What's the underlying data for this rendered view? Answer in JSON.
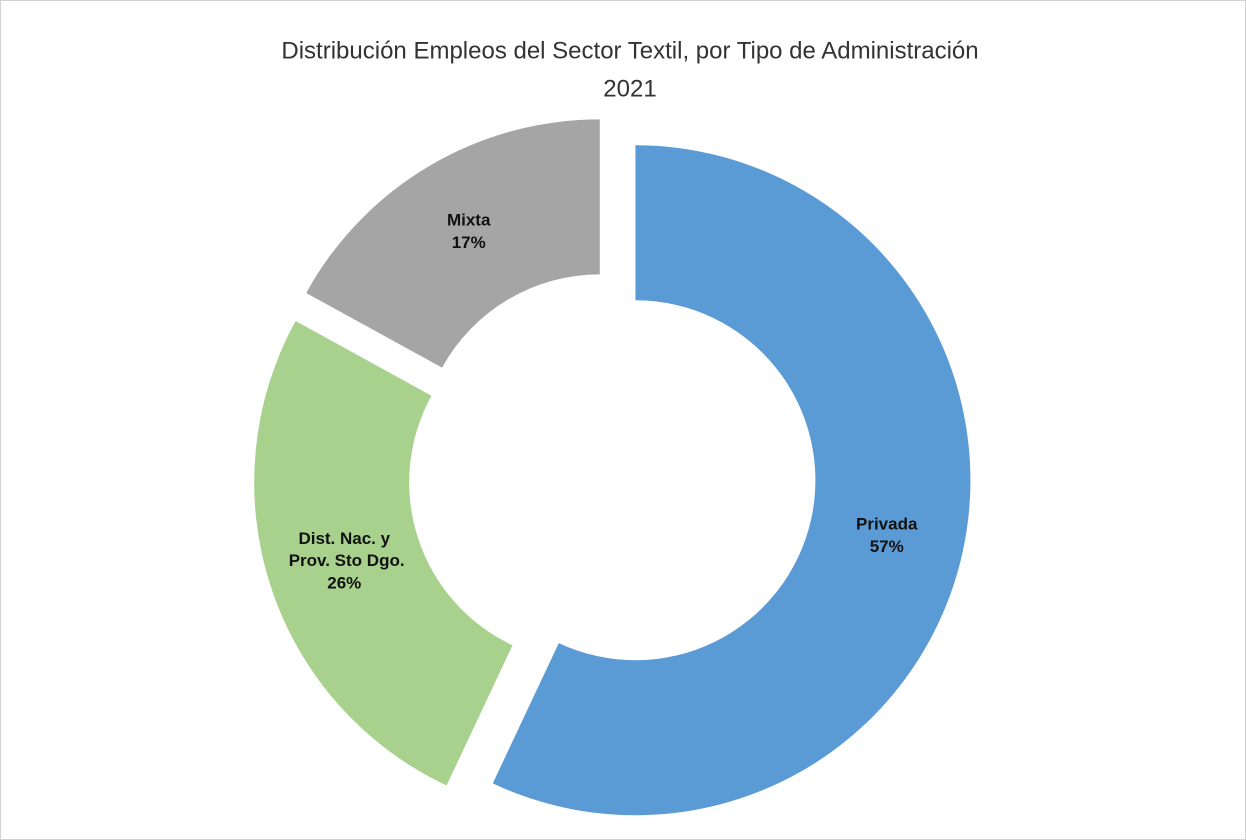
{
  "chart_data": {
    "type": "donut",
    "title": "Distribución Empleos del Sector Textil, por Tipo de Administración",
    "subtitle": "2021",
    "categories": [
      "Privada",
      "Dist. Nac. y Prov. Sto Dgo.",
      "Mixta"
    ],
    "values": [
      57,
      26,
      17
    ],
    "value_labels": [
      "57%",
      "26%",
      "17%"
    ],
    "colors": [
      "#5b9bd5",
      "#a9d18e",
      "#a5a5a5"
    ]
  }
}
